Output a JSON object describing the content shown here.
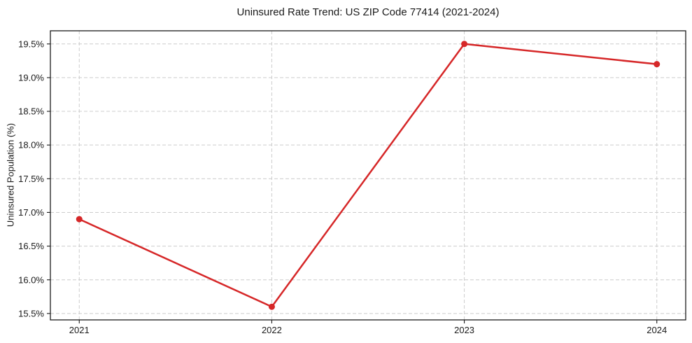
{
  "chart_data": {
    "type": "line",
    "title": "Uninsured Rate Trend: US ZIP Code 77414 (2021-2024)",
    "xlabel": "",
    "ylabel": "Uninsured Population (%)",
    "x": [
      2021,
      2022,
      2023,
      2024
    ],
    "values": [
      16.9,
      15.6,
      19.5,
      19.2
    ],
    "xlim": [
      2020.85,
      2024.15
    ],
    "ylim": [
      15.405,
      19.695
    ],
    "xticks": [
      {
        "value": 2021,
        "label": "2021"
      },
      {
        "value": 2022,
        "label": "2022"
      },
      {
        "value": 2023,
        "label": "2023"
      },
      {
        "value": 2024,
        "label": "2024"
      }
    ],
    "yticks": [
      {
        "value": 15.5,
        "label": "15.5%"
      },
      {
        "value": 16.0,
        "label": "16.0%"
      },
      {
        "value": 16.5,
        "label": "16.5%"
      },
      {
        "value": 17.0,
        "label": "17.0%"
      },
      {
        "value": 17.5,
        "label": "17.5%"
      },
      {
        "value": 18.0,
        "label": "18.0%"
      },
      {
        "value": 18.5,
        "label": "18.5%"
      },
      {
        "value": 19.0,
        "label": "19.0%"
      },
      {
        "value": 19.5,
        "label": "19.5%"
      }
    ],
    "grid": true,
    "grid_style": "dashed",
    "legend": false,
    "colors": {
      "line": "#d62728",
      "marker": "#d62728",
      "grid": "#cccccc",
      "spine": "#1a1a1a",
      "text": "#1a1a1a",
      "background": "#ffffff"
    },
    "marker": "circle"
  }
}
